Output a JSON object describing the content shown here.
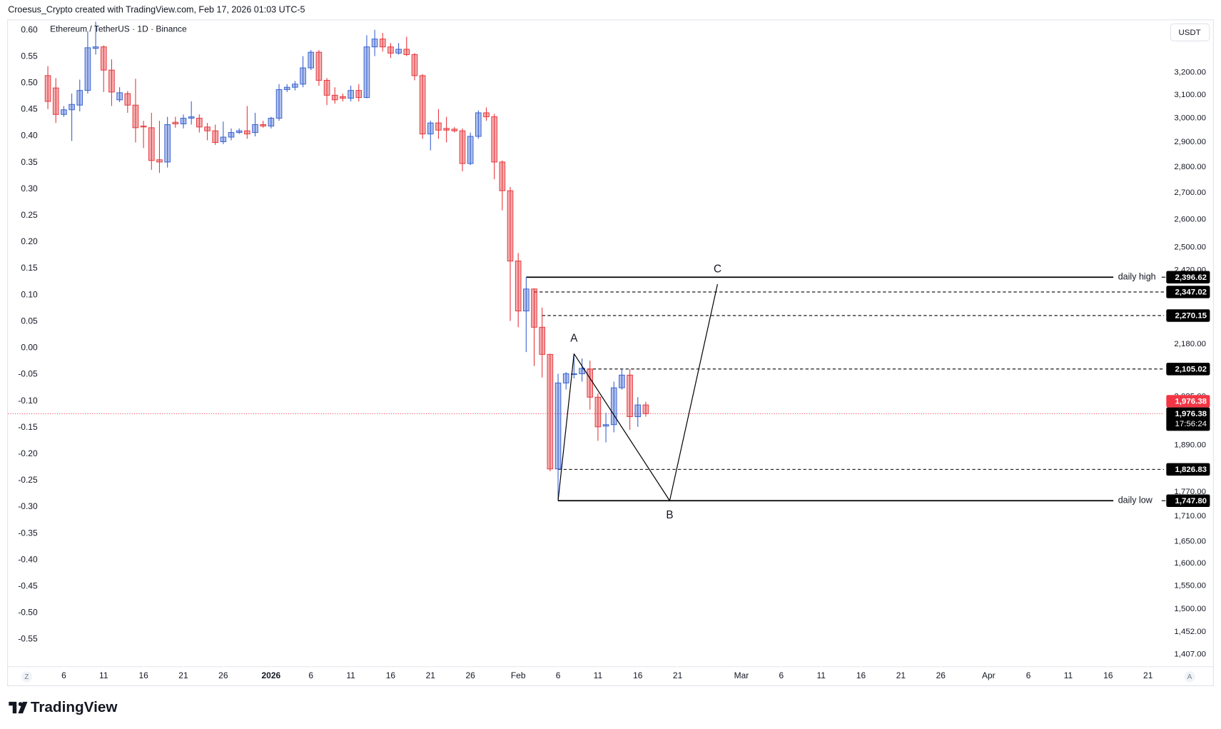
{
  "header": "Croesus_Crypto created with TradingView.com, Feb 17, 2026 01:03 UTC-5",
  "footer": {
    "logo": "TradingView"
  },
  "buttons": [
    "Z",
    "A"
  ],
  "chart_data": {
    "type": "candlestick",
    "title": "Ethereum / TetherUS · 1D · Binance",
    "currency": "USDT",
    "log_scale": true,
    "grid": false,
    "up_color": "#3b63d0",
    "down_color": "#e5383d",
    "x": [
      "2025-12-04",
      "2025-12-05",
      "2025-12-06",
      "2025-12-07",
      "2025-12-08",
      "2025-12-09",
      "2025-12-10",
      "2025-12-11",
      "2025-12-12",
      "2025-12-13",
      "2025-12-14",
      "2025-12-15",
      "2025-12-16",
      "2025-12-17",
      "2025-12-18",
      "2025-12-19",
      "2025-12-20",
      "2025-12-21",
      "2025-12-22",
      "2025-12-23",
      "2025-12-24",
      "2025-12-25",
      "2025-12-26",
      "2025-12-27",
      "2025-12-28",
      "2025-12-29",
      "2025-12-30",
      "2025-12-31",
      "2026-01-01",
      "2026-01-02",
      "2026-01-03",
      "2026-01-04",
      "2026-01-05",
      "2026-01-06",
      "2026-01-07",
      "2026-01-08",
      "2026-01-09",
      "2026-01-10",
      "2026-01-11",
      "2026-01-12",
      "2026-01-13",
      "2026-01-14",
      "2026-01-15",
      "2026-01-16",
      "2026-01-17",
      "2026-01-18",
      "2026-01-19",
      "2026-01-20",
      "2026-01-21",
      "2026-01-22",
      "2026-01-23",
      "2026-01-24",
      "2026-01-25",
      "2026-01-26",
      "2026-01-27",
      "2026-01-28",
      "2026-01-29",
      "2026-01-30",
      "2026-01-31",
      "2026-02-01",
      "2026-02-02",
      "2026-02-03",
      "2026-02-04",
      "2026-02-05",
      "2026-02-06",
      "2026-02-07",
      "2026-02-08",
      "2026-02-09",
      "2026-02-10",
      "2026-02-11",
      "2026-02-12",
      "2026-02-13",
      "2026-02-14",
      "2026-02-15",
      "2026-02-16",
      "2026-02-17"
    ],
    "open": [
      3186,
      3131,
      3016,
      3036,
      3056,
      3120,
      3311,
      3318,
      3211,
      3079,
      3106,
      3056,
      2967,
      2960,
      2829,
      2820,
      2983,
      2976,
      3000,
      3000,
      2963,
      2947,
      2902,
      2921,
      2940,
      2947,
      2940,
      2973,
      2967,
      3000,
      3124,
      3134,
      3148,
      3221,
      3293,
      3165,
      3099,
      3093,
      3086,
      3120,
      3089,
      3318,
      3355,
      3318,
      3289,
      3307,
      3282,
      3186,
      2934,
      2980,
      2957,
      2954,
      2947,
      2814,
      2924,
      3023,
      3006,
      2820,
      2708,
      2452,
      2285,
      2357,
      2233,
      2149,
      1828,
      2064,
      2089,
      2091,
      2105,
      2023,
      1942,
      1946,
      2050,
      2087,
      1968,
      2001
    ],
    "high": [
      3229,
      3175,
      3052,
      3106,
      3168,
      3392,
      3438,
      3325,
      3260,
      3134,
      3117,
      3172,
      2989,
      3023,
      2989,
      3006,
      3006,
      3016,
      3072,
      3016,
      2980,
      2973,
      2986,
      2957,
      2957,
      3052,
      3023,
      2989,
      3006,
      3148,
      3148,
      3162,
      3275,
      3303,
      3303,
      3175,
      3134,
      3106,
      3141,
      3148,
      3373,
      3399,
      3384,
      3336,
      3336,
      3366,
      3289,
      3193,
      2989,
      3039,
      3006,
      2963,
      2957,
      2940,
      3033,
      3046,
      3019,
      2826,
      2722,
      2480,
      2396.62,
      2359,
      2296,
      2151,
      2091,
      2096,
      2151,
      2137,
      2130,
      2034,
      1979,
      2068,
      2105,
      2105,
      2023,
      2010
    ],
    "low": [
      3039,
      2980,
      3006,
      2905,
      3029,
      3106,
      3282,
      3113,
      3052,
      3069,
      3023,
      2899,
      2876,
      2789,
      2777,
      2798,
      2960,
      2957,
      2973,
      2940,
      2908,
      2889,
      2892,
      2908,
      2934,
      2914,
      2924,
      2960,
      2957,
      2989,
      3113,
      3120,
      3134,
      3211,
      3141,
      3056,
      3062,
      3072,
      3072,
      3072,
      3086,
      3275,
      3296,
      3267,
      3282,
      3275,
      3165,
      2914,
      2867,
      2914,
      2899,
      2940,
      2783,
      2808,
      2914,
      2989,
      2752,
      2634,
      2253,
      2233,
      2156,
      2114,
      2080,
      1822,
      1747.8,
      2045,
      2077,
      2068,
      1988,
      1902,
      1898,
      1925,
      2045,
      1932,
      1940,
      1968
    ],
    "close": [
      3072,
      3016,
      3036,
      3059,
      3120,
      3314,
      3318,
      3211,
      3113,
      3110,
      3056,
      2960,
      2963,
      2826,
      2820,
      2973,
      2976,
      3000,
      3006,
      2963,
      2947,
      2899,
      2921,
      2940,
      2947,
      2934,
      2973,
      2967,
      3000,
      3124,
      3134,
      3148,
      3221,
      3293,
      3165,
      3099,
      3079,
      3086,
      3120,
      3089,
      3318,
      3355,
      3318,
      3289,
      3307,
      3282,
      3186,
      2934,
      2980,
      2950,
      2950,
      2947,
      2814,
      2924,
      3023,
      3006,
      2820,
      2708,
      2452,
      2285,
      2357,
      2233,
      2149,
      1828,
      2064,
      2091,
      2091,
      2107,
      2023,
      1940,
      1946,
      2050,
      2087,
      1968,
      2001,
      1976.38
    ],
    "xlim": [
      "2025-11-29",
      "2026-04-23"
    ],
    "xticks": [
      {
        "value": "2025-12-06",
        "label": "6"
      },
      {
        "value": "2025-12-11",
        "label": "11"
      },
      {
        "value": "2025-12-16",
        "label": "16"
      },
      {
        "value": "2025-12-21",
        "label": "21"
      },
      {
        "value": "2025-12-26",
        "label": "26"
      },
      {
        "value": "2026-01-01",
        "label": "2026"
      },
      {
        "value": "2026-01-06",
        "label": "6"
      },
      {
        "value": "2026-01-11",
        "label": "11"
      },
      {
        "value": "2026-01-16",
        "label": "16"
      },
      {
        "value": "2026-01-21",
        "label": "21"
      },
      {
        "value": "2026-01-26",
        "label": "26"
      },
      {
        "value": "2026-02-01",
        "label": "Feb"
      },
      {
        "value": "2026-02-06",
        "label": "6"
      },
      {
        "value": "2026-02-11",
        "label": "11"
      },
      {
        "value": "2026-02-16",
        "label": "16"
      },
      {
        "value": "2026-02-21",
        "label": "21"
      },
      {
        "value": "2026-03-01",
        "label": "Mar"
      },
      {
        "value": "2026-03-06",
        "label": "6"
      },
      {
        "value": "2026-03-11",
        "label": "11"
      },
      {
        "value": "2026-03-16",
        "label": "16"
      },
      {
        "value": "2026-03-21",
        "label": "21"
      },
      {
        "value": "2026-03-26",
        "label": "26"
      },
      {
        "value": "2026-04-01",
        "label": "Apr"
      },
      {
        "value": "2026-04-06",
        "label": "6"
      },
      {
        "value": "2026-04-11",
        "label": "11"
      },
      {
        "value": "2026-04-16",
        "label": "16"
      },
      {
        "value": "2026-04-21",
        "label": "21"
      }
    ],
    "ylim": [
      1384,
      3449
    ],
    "yticks": [
      {
        "value": 3200,
        "label": "3,200.00"
      },
      {
        "value": 3100,
        "label": "3,100.00"
      },
      {
        "value": 3000,
        "label": "3,000.00"
      },
      {
        "value": 2900,
        "label": "2,900.00"
      },
      {
        "value": 2800,
        "label": "2,800.00"
      },
      {
        "value": 2700,
        "label": "2,700.00"
      },
      {
        "value": 2600,
        "label": "2,600.00"
      },
      {
        "value": 2500,
        "label": "2,500.00"
      },
      {
        "value": 2420,
        "label": "2,420.00"
      },
      {
        "value": 2180,
        "label": "2,180.00"
      },
      {
        "value": 2025,
        "label": "2,025.00"
      },
      {
        "value": 1890,
        "label": "1,890.00"
      },
      {
        "value": 1770,
        "label": "1,770.00"
      },
      {
        "value": 1710,
        "label": "1,710.00"
      },
      {
        "value": 1650,
        "label": "1,650.00"
      },
      {
        "value": 1600,
        "label": "1,600.00"
      },
      {
        "value": 1550,
        "label": "1,550.00"
      },
      {
        "value": 1500,
        "label": "1,500.00"
      },
      {
        "value": 1452,
        "label": "1,452.00"
      },
      {
        "value": 1407,
        "label": "1,407.00"
      }
    ],
    "y2lim": [
      -0.6,
      0.62
    ],
    "y2ticks": [
      {
        "value": 0.6,
        "label": "0.60"
      },
      {
        "value": 0.55,
        "label": "0.55"
      },
      {
        "value": 0.5,
        "label": "0.50"
      },
      {
        "value": 0.45,
        "label": "0.45"
      },
      {
        "value": 0.4,
        "label": "0.40"
      },
      {
        "value": 0.35,
        "label": "0.35"
      },
      {
        "value": 0.3,
        "label": "0.30"
      },
      {
        "value": 0.25,
        "label": "0.25"
      },
      {
        "value": 0.2,
        "label": "0.20"
      },
      {
        "value": 0.15,
        "label": "0.15"
      },
      {
        "value": 0.1,
        "label": "0.10"
      },
      {
        "value": 0.05,
        "label": "0.05"
      },
      {
        "value": 0,
        "label": "0.00"
      },
      {
        "value": -0.05,
        "label": "-0.05"
      },
      {
        "value": -0.1,
        "label": "-0.10"
      },
      {
        "value": -0.15,
        "label": "-0.15"
      },
      {
        "value": -0.2,
        "label": "-0.20"
      },
      {
        "value": -0.25,
        "label": "-0.25"
      },
      {
        "value": -0.3,
        "label": "-0.30"
      },
      {
        "value": -0.35,
        "label": "-0.35"
      },
      {
        "value": -0.4,
        "label": "-0.40"
      },
      {
        "value": -0.45,
        "label": "-0.45"
      },
      {
        "value": -0.5,
        "label": "-0.50"
      },
      {
        "value": -0.55,
        "label": "-0.55"
      }
    ],
    "last_price": {
      "value": 1976.38,
      "label": "1,976.38",
      "countdown": "17:56:24",
      "color": "#f23645"
    },
    "levels": [
      {
        "value": 2396.62,
        "label": "2,396.62",
        "text": "daily high",
        "from": "2026-02-02",
        "style": "solid"
      },
      {
        "value": 2347.02,
        "label": "2,347.02",
        "from": "2026-02-03",
        "style": "dashed"
      },
      {
        "value": 2270.15,
        "label": "2,270.15",
        "from": "2026-02-04",
        "style": "dashed"
      },
      {
        "value": 2105.02,
        "label": "2,105.02",
        "from": "2026-02-09",
        "style": "dashed"
      },
      {
        "value": 1826.83,
        "label": "1,826.83",
        "from": "2026-02-06",
        "style": "dashed"
      },
      {
        "value": 1747.8,
        "label": "1,747.80",
        "text": "daily low",
        "from": "2026-02-06",
        "style": "solid"
      }
    ],
    "pattern": [
      {
        "x": "2026-02-06",
        "y": 1747.8
      },
      {
        "x": "2026-02-08",
        "y": 2151,
        "label": "A"
      },
      {
        "x": "2026-02-20",
        "y": 1747.8,
        "label": "B"
      },
      {
        "x": "2026-02-26",
        "y": 2373,
        "label": "C"
      }
    ]
  }
}
